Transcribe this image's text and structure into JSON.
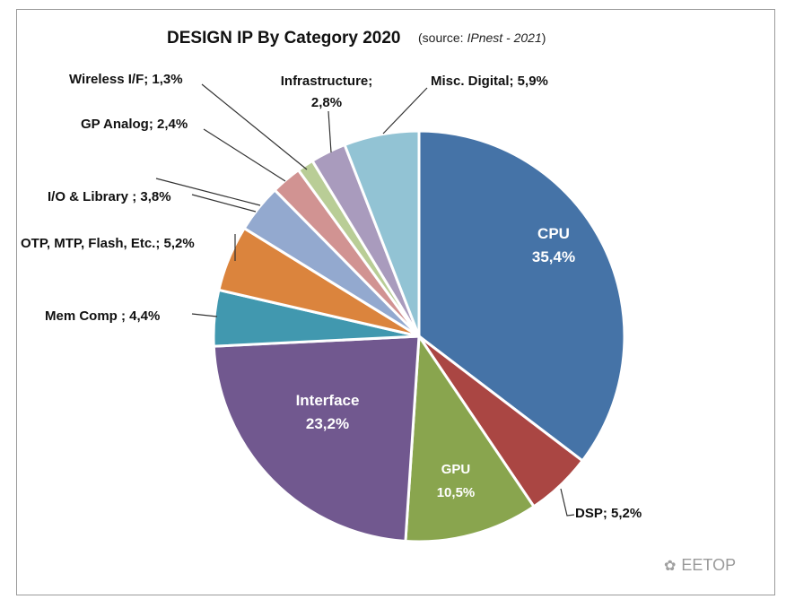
{
  "watermark": {
    "text": "EETOP",
    "glyph": "wechat-icon"
  },
  "chart_data": {
    "type": "pie",
    "title": "DESIGN IP By Category 2020",
    "subtitle_prefix": "(source: ",
    "subtitle_source": "IPnest - 2021",
    "subtitle_suffix": ")",
    "slices": [
      {
        "name": "CPU",
        "value": 35.4,
        "value_text": "35,4%",
        "color": "#4573a7",
        "label_style": "inside"
      },
      {
        "name": "DSP",
        "value": 5.2,
        "value_text": "DSP;  5,2%",
        "color": "#aa4643",
        "label_style": "outside"
      },
      {
        "name": "GPU",
        "value": 10.5,
        "value_text": "10,5%",
        "color": "#89a54e",
        "label_style": "inside"
      },
      {
        "name": "Interface",
        "value": 23.2,
        "value_text": "23,2%",
        "color": "#71588f",
        "label_style": "inside"
      },
      {
        "name": "Mem Comp",
        "value": 4.4,
        "value_text": "Mem Comp ; 4,4%",
        "color": "#4198af",
        "label_style": "outside"
      },
      {
        "name": "OTP, MTP, Flash, Etc.",
        "value": 5.2,
        "value_text": "OTP, MTP, Flash, Etc.; 5,2%",
        "color": "#db843d",
        "label_style": "outside"
      },
      {
        "name": "I/O & Library",
        "value": 3.8,
        "value_text": "I/O & Library ; 3,8%",
        "color": "#93a9cf",
        "label_style": "outside"
      },
      {
        "name": "GP Analog",
        "value": 2.4,
        "value_text": "GP Analog; 2,4%",
        "color": "#d19392",
        "label_style": "outside"
      },
      {
        "name": "Wireless I/F",
        "value": 1.3,
        "value_text": "Wireless I/F; 1,3%",
        "color": "#b9cd96",
        "label_style": "outside"
      },
      {
        "name": "Infrastructure",
        "value": 2.8,
        "value_text": "Infrastructure;|2,8%",
        "color": "#a99bbd",
        "label_style": "outside"
      },
      {
        "name": "Misc. Digital",
        "value": 5.9,
        "value_text": "Misc. Digital; 5,9%",
        "color": "#92c3d4",
        "label_style": "outside"
      }
    ]
  }
}
